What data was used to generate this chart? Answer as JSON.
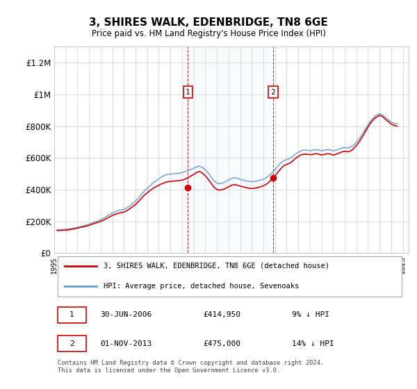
{
  "title": "3, SHIRES WALK, EDENBRIDGE, TN8 6GE",
  "subtitle": "Price paid vs. HM Land Registry's House Price Index (HPI)",
  "xlim_start": 1995.0,
  "xlim_end": 2025.5,
  "ylim": [
    0,
    1300000
  ],
  "yticks": [
    0,
    200000,
    400000,
    600000,
    800000,
    1000000,
    1200000
  ],
  "ytick_labels": [
    "£0",
    "£200K",
    "£400K",
    "£600K",
    "£800K",
    "£1M",
    "£1.2M"
  ],
  "sale1_date": 2006.5,
  "sale1_price": 414950,
  "sale1_label": "1",
  "sale2_date": 2013.83,
  "sale2_price": 475000,
  "sale2_label": "2",
  "hpi_color": "#a8c8e8",
  "hpi_line_color": "#6699cc",
  "price_color": "#cc0000",
  "shade_color": "#ddeeff",
  "annotation_box_color": "#cc0000",
  "background_color": "#ffffff",
  "grid_color": "#cccccc",
  "legend_label_price": "3, SHIRES WALK, EDENBRIDGE, TN8 6GE (detached house)",
  "legend_label_hpi": "HPI: Average price, detached house, Sevenoaks",
  "table_row1": [
    "1",
    "30-JUN-2006",
    "£414,950",
    "9% ↓ HPI"
  ],
  "table_row2": [
    "2",
    "01-NOV-2013",
    "£475,000",
    "14% ↓ HPI"
  ],
  "footer": "Contains HM Land Registry data © Crown copyright and database right 2024.\nThis data is licensed under the Open Government Licence v3.0.",
  "hpi_data": {
    "years": [
      1995.25,
      1995.5,
      1995.75,
      1996.0,
      1996.25,
      1996.5,
      1996.75,
      1997.0,
      1997.25,
      1997.5,
      1997.75,
      1998.0,
      1998.25,
      1998.5,
      1998.75,
      1999.0,
      1999.25,
      1999.5,
      1999.75,
      2000.0,
      2000.25,
      2000.5,
      2000.75,
      2001.0,
      2001.25,
      2001.5,
      2001.75,
      2002.0,
      2002.25,
      2002.5,
      2002.75,
      2003.0,
      2003.25,
      2003.5,
      2003.75,
      2004.0,
      2004.25,
      2004.5,
      2004.75,
      2005.0,
      2005.25,
      2005.5,
      2005.75,
      2006.0,
      2006.25,
      2006.5,
      2006.75,
      2007.0,
      2007.25,
      2007.5,
      2007.75,
      2008.0,
      2008.25,
      2008.5,
      2008.75,
      2009.0,
      2009.25,
      2009.5,
      2009.75,
      2010.0,
      2010.25,
      2010.5,
      2010.75,
      2011.0,
      2011.25,
      2011.5,
      2011.75,
      2012.0,
      2012.25,
      2012.5,
      2012.75,
      2013.0,
      2013.25,
      2013.5,
      2013.75,
      2014.0,
      2014.25,
      2014.5,
      2014.75,
      2015.0,
      2015.25,
      2015.5,
      2015.75,
      2016.0,
      2016.25,
      2016.5,
      2016.75,
      2017.0,
      2017.25,
      2017.5,
      2017.75,
      2018.0,
      2018.25,
      2018.5,
      2018.75,
      2019.0,
      2019.25,
      2019.5,
      2019.75,
      2020.0,
      2020.25,
      2020.5,
      2020.75,
      2021.0,
      2021.25,
      2021.5,
      2021.75,
      2022.0,
      2022.25,
      2022.5,
      2022.75,
      2023.0,
      2023.25,
      2023.5,
      2023.75,
      2024.0,
      2024.25,
      2024.5
    ],
    "values": [
      148000,
      147000,
      149000,
      151000,
      153000,
      155000,
      158000,
      163000,
      168000,
      172000,
      177000,
      183000,
      190000,
      197000,
      203000,
      210000,
      220000,
      232000,
      244000,
      253000,
      261000,
      268000,
      272000,
      276000,
      285000,
      298000,
      313000,
      328000,
      348000,
      370000,
      392000,
      408000,
      425000,
      442000,
      455000,
      468000,
      480000,
      490000,
      496000,
      498000,
      500000,
      501000,
      503000,
      507000,
      513000,
      519000,
      527000,
      535000,
      543000,
      548000,
      540000,
      525000,
      505000,
      480000,
      456000,
      440000,
      438000,
      442000,
      450000,
      460000,
      470000,
      475000,
      472000,
      465000,
      460000,
      455000,
      452000,
      450000,
      452000,
      455000,
      460000,
      465000,
      475000,
      490000,
      505000,
      525000,
      548000,
      568000,
      582000,
      590000,
      596000,
      608000,
      623000,
      635000,
      645000,
      650000,
      648000,
      645000,
      648000,
      652000,
      650000,
      645000,
      648000,
      652000,
      650000,
      645000,
      648000,
      655000,
      662000,
      665000,
      662000,
      668000,
      680000,
      698000,
      720000,
      748000,
      778000,
      808000,
      835000,
      855000,
      870000,
      878000,
      870000,
      855000,
      840000,
      825000,
      818000,
      815000
    ]
  },
  "price_data": {
    "years": [
      1995.25,
      1995.5,
      1995.75,
      1996.0,
      1996.25,
      1996.5,
      1996.75,
      1997.0,
      1997.25,
      1997.5,
      1997.75,
      1998.0,
      1998.25,
      1998.5,
      1998.75,
      1999.0,
      1999.25,
      1999.5,
      1999.75,
      2000.0,
      2000.25,
      2000.5,
      2000.75,
      2001.0,
      2001.25,
      2001.5,
      2001.75,
      2002.0,
      2002.25,
      2002.5,
      2002.75,
      2003.0,
      2003.25,
      2003.5,
      2003.75,
      2004.0,
      2004.25,
      2004.5,
      2004.75,
      2005.0,
      2005.25,
      2005.5,
      2005.75,
      2006.0,
      2006.25,
      2006.5,
      2006.75,
      2007.0,
      2007.25,
      2007.5,
      2007.75,
      2008.0,
      2008.25,
      2008.5,
      2008.75,
      2009.0,
      2009.25,
      2009.5,
      2009.75,
      2010.0,
      2010.25,
      2010.5,
      2010.75,
      2011.0,
      2011.25,
      2011.5,
      2011.75,
      2012.0,
      2012.25,
      2012.5,
      2012.75,
      2013.0,
      2013.25,
      2013.5,
      2013.75,
      2014.0,
      2014.25,
      2014.5,
      2014.75,
      2015.0,
      2015.25,
      2015.5,
      2015.75,
      2016.0,
      2016.25,
      2016.5,
      2016.75,
      2017.0,
      2017.25,
      2017.5,
      2017.75,
      2018.0,
      2018.25,
      2018.5,
      2018.75,
      2019.0,
      2019.25,
      2019.5,
      2019.75,
      2020.0,
      2020.25,
      2020.5,
      2020.75,
      2021.0,
      2021.25,
      2021.5,
      2021.75,
      2022.0,
      2022.25,
      2022.5,
      2022.75,
      2023.0,
      2023.25,
      2023.5,
      2023.75,
      2024.0,
      2024.25,
      2024.5
    ],
    "values": [
      143000,
      143000,
      144000,
      145000,
      147000,
      150000,
      154000,
      158000,
      162000,
      166000,
      170000,
      175000,
      182000,
      188000,
      194000,
      200000,
      208000,
      218000,
      228000,
      238000,
      245000,
      251000,
      255000,
      259000,
      268000,
      280000,
      293000,
      307000,
      325000,
      345000,
      365000,
      380000,
      395000,
      408000,
      418000,
      428000,
      437000,
      444000,
      449000,
      452000,
      454000,
      455000,
      457000,
      460000,
      466000,
      475000,
      485000,
      496000,
      508000,
      515000,
      504000,
      488000,
      465000,
      440000,
      416000,
      400000,
      397000,
      401000,
      408000,
      418000,
      428000,
      432000,
      428000,
      422000,
      418000,
      413000,
      409000,
      407000,
      409000,
      413000,
      418000,
      424000,
      434000,
      449000,
      464000,
      484000,
      510000,
      533000,
      550000,
      559000,
      566000,
      579000,
      596000,
      609000,
      619000,
      624000,
      623000,
      620000,
      622000,
      626000,
      624000,
      618000,
      622000,
      626000,
      624000,
      618000,
      622000,
      630000,
      638000,
      642000,
      638000,
      644000,
      658000,
      678000,
      702000,
      730000,
      762000,
      794000,
      822000,
      843000,
      858000,
      868000,
      860000,
      843000,
      828000,
      812000,
      805000,
      800000
    ]
  }
}
